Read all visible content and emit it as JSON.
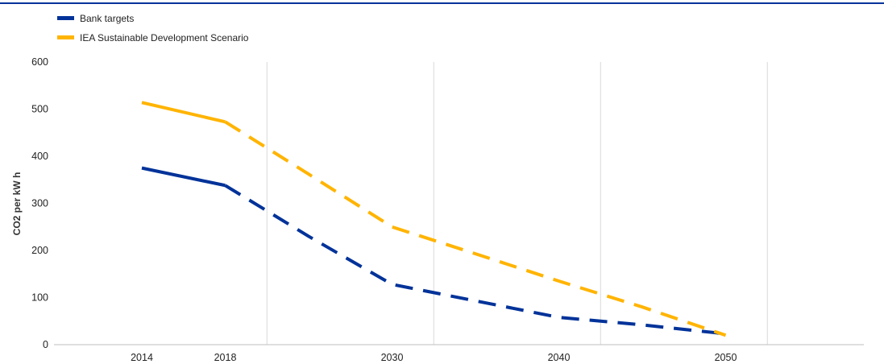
{
  "chart_data": {
    "type": "line",
    "title": "",
    "xlabel": "",
    "ylabel": "CO2 per kW h",
    "categories": [
      "2014",
      "2018",
      "",
      "2030",
      "",
      "2040",
      "",
      "2050"
    ],
    "ylim": [
      0,
      600
    ],
    "yticks": [
      "0",
      "100",
      "200",
      "300",
      "400",
      "500",
      "600"
    ],
    "grid": "vertical",
    "legend_position": "top-left",
    "series": [
      {
        "name": "Bank targets",
        "color": "#003299",
        "values": [
          375,
          338,
          230,
          128,
          93,
          58,
          42,
          23
        ],
        "solid_until_index": 1
      },
      {
        "name": "IEA Sustainable Development Scenario",
        "color": "#FFB400",
        "values": [
          514,
          473,
          362,
          250,
          193,
          135,
          80,
          20
        ],
        "solid_until_index": 1
      }
    ]
  }
}
